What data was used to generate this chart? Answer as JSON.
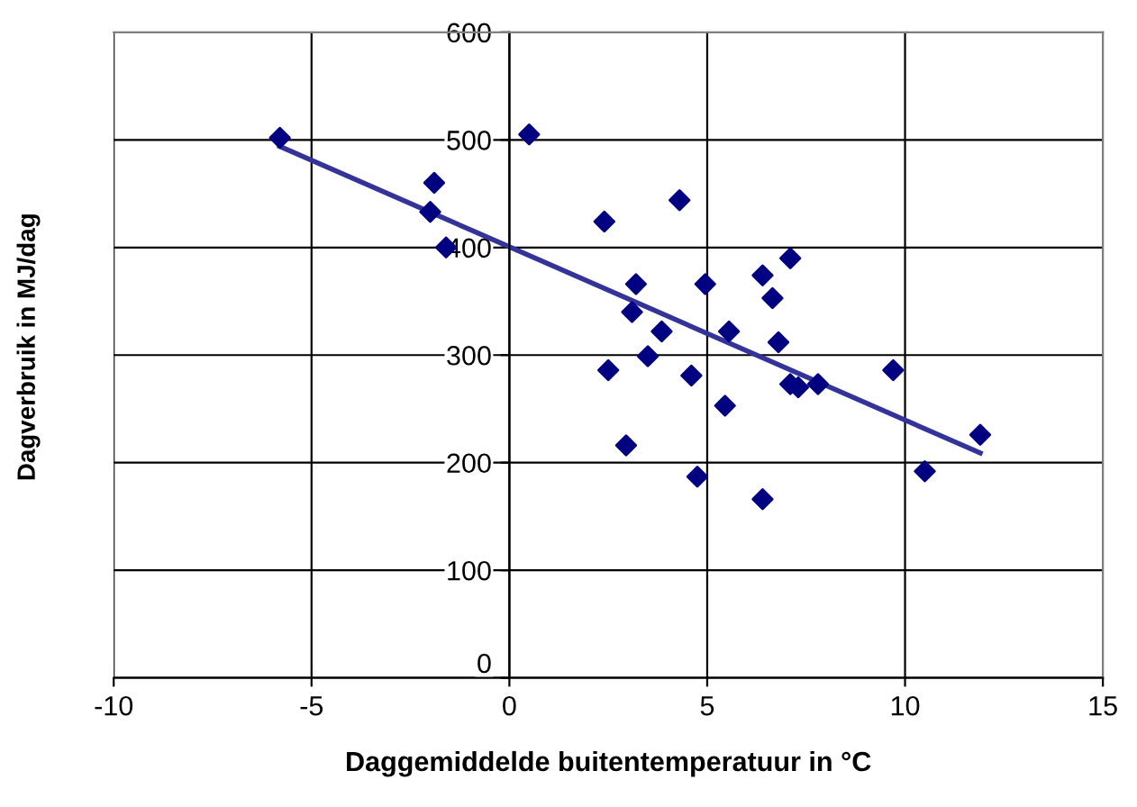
{
  "chart_data": {
    "type": "scatter",
    "xlabel": "Daggemiddelde buitentemperatuur in °C",
    "ylabel": "Dagverbruik in MJ/dag",
    "xlim": [
      -10,
      15
    ],
    "ylim": [
      0,
      600
    ],
    "xticks": [
      -10,
      -5,
      0,
      5,
      10,
      15
    ],
    "yticks": [
      0,
      100,
      200,
      300,
      400,
      500,
      600
    ],
    "grid": true,
    "legend": false,
    "series": [
      {
        "color": "#000080",
        "marker": "diamond",
        "x": [
          -5.8,
          0.5,
          -1.9,
          -2.0,
          -1.6,
          2.4,
          4.3,
          3.2,
          4.95,
          3.1,
          3.85,
          3.5,
          2.5,
          4.6,
          5.55,
          5.45,
          2.95,
          4.75,
          6.4,
          6.4,
          7.1,
          6.65,
          6.8,
          7.1,
          7.3,
          7.8,
          9.7,
          11.9,
          10.5
        ],
        "values": [
          502,
          505,
          460,
          433,
          400,
          424,
          444,
          366,
          366,
          340,
          322,
          299,
          286,
          281,
          322,
          253,
          216,
          187,
          166,
          374,
          390,
          353,
          312,
          273,
          270,
          273,
          286,
          226,
          192
        ]
      },
      {
        "type": "line",
        "color": "#333399",
        "marker": "none",
        "x": [
          -5.8,
          11.9
        ],
        "values": [
          494,
          209
        ]
      }
    ]
  }
}
